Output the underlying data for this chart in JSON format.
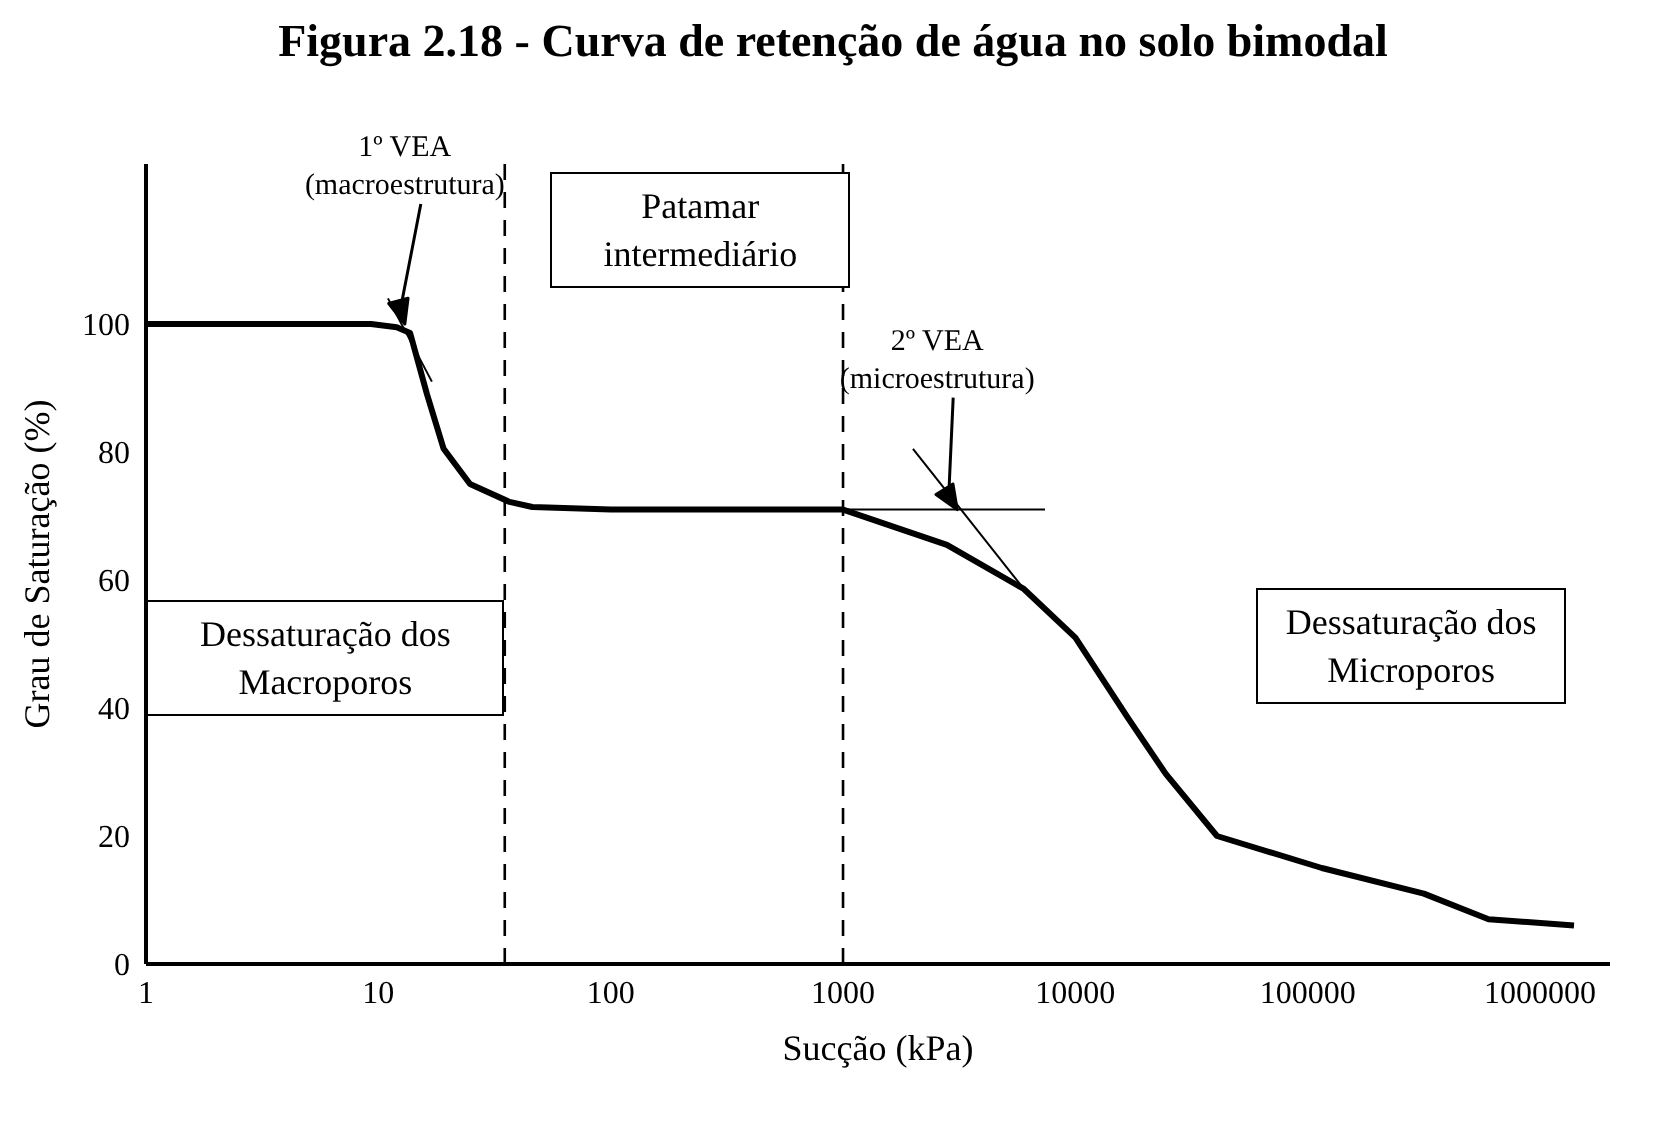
{
  "chart_data": {
    "type": "line",
    "title": "Figura 2.18 - Curva de retenção de água no solo bimodal",
    "xlabel": "Sucção (kPa)",
    "ylabel": "Grau de Saturação (%)",
    "log": "x",
    "xlim": [
      1,
      2000000
    ],
    "xticks": [
      1,
      10,
      100,
      1000,
      10000,
      100000,
      1000000
    ],
    "ylim": [
      0,
      125
    ],
    "yticks": [
      0,
      20,
      40,
      60,
      80,
      100
    ],
    "grid": false,
    "marker": "none",
    "line_style": "solid",
    "series": [
      {
        "color": "#000000",
        "x": [
          1,
          2,
          4,
          7,
          9.3,
          12,
          13.7,
          16.2,
          19.1,
          24.8,
          36.7,
          46,
          100,
          500,
          1000,
          1100,
          2800,
          6000,
          10000,
          16800,
          24500,
          40700,
          115000,
          316000,
          600000,
          1400000
        ],
        "values": [
          100,
          100,
          100,
          100,
          100,
          99.5,
          98.6,
          89,
          80.5,
          75,
          72.2,
          71.4,
          71,
          71,
          71,
          70.5,
          65.5,
          58.6,
          51,
          38.5,
          29.7,
          20,
          15,
          11,
          7,
          6
        ]
      },
      {
        "color": "#000000",
        "x": [
          11,
          17
        ],
        "values": [
          104,
          91
        ]
      },
      {
        "color": "#000000",
        "x": [
          1000,
          7400
        ],
        "values": [
          71,
          71
        ]
      },
      {
        "color": "#000000",
        "x": [
          2000,
          6000
        ],
        "values": [
          80.5,
          58.6
        ]
      }
    ],
    "ref_lines": [
      {
        "axis": "x",
        "value": 35,
        "line_style": "dashed",
        "color": "#000000"
      },
      {
        "axis": "x",
        "value": 1000,
        "line_style": "dashed",
        "color": "#000000"
      }
    ],
    "annotations": [
      {
        "text": "1º VEA\n(macroestrutura)",
        "x": 13,
        "y": 100
      },
      "Patamar intermediário",
      {
        "text": "2º VEA\n(microestrutura)",
        "x": 3100,
        "y": 71
      },
      "Dessaturação dos Macroporos",
      "Dessaturação dos Microporos"
    ]
  }
}
